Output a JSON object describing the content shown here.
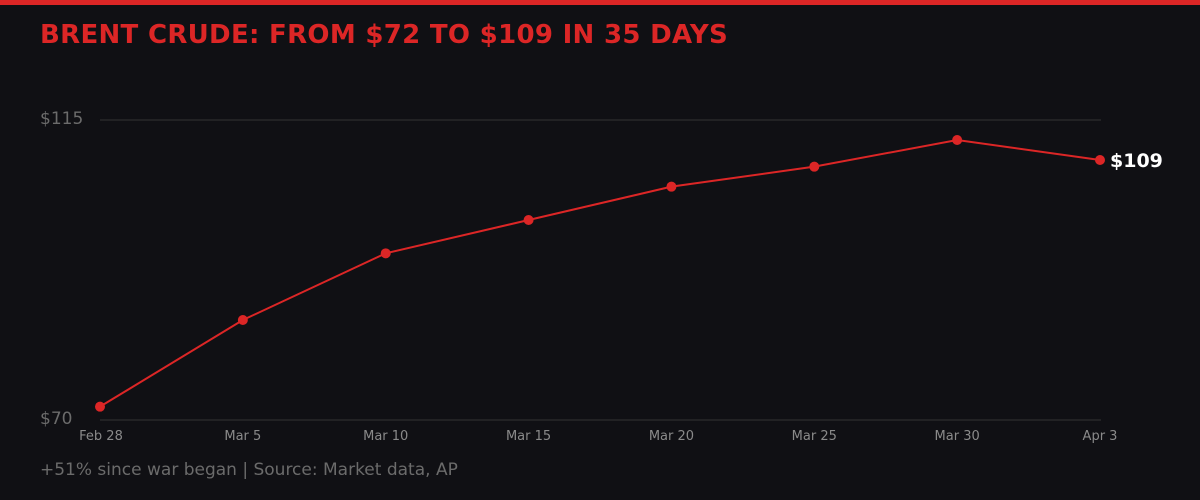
{
  "title": "BRENT CRUDE: FROM $72 TO $109 IN 35 DAYS",
  "footer": "+51% since war began | Source: Market data, AP",
  "end_label": "$109",
  "colors": {
    "accent": "#dc2626",
    "background": "#101014",
    "gridline": "#333333",
    "axis_text": "#6b6b6b",
    "end_label": "#ffffff"
  },
  "y_axis": {
    "ticks": [
      {
        "label": "$115",
        "value": 115
      },
      {
        "label": "$70",
        "value": 70
      }
    ]
  },
  "x_axis": {
    "ticks": [
      "Feb 28",
      "Mar 5",
      "Mar 10",
      "Mar 15",
      "Mar 20",
      "Mar 25",
      "Mar 30",
      "Apr 3"
    ]
  },
  "chart_data": {
    "type": "line",
    "title": "BRENT CRUDE: FROM $72 TO $109 IN 35 DAYS",
    "subtitle": "",
    "xlabel": "",
    "ylabel": "",
    "categories": [
      "Feb 28",
      "Mar 5",
      "Mar 10",
      "Mar 15",
      "Mar 20",
      "Mar 25",
      "Mar 30",
      "Apr 3"
    ],
    "series": [
      {
        "name": "Brent Crude",
        "values": [
          72,
          85,
          95,
          100,
          105,
          108,
          112,
          109
        ],
        "color": "#dc2626"
      }
    ],
    "ylim": [
      70,
      115
    ],
    "yticks": [
      "$70",
      "$115"
    ],
    "grid": true,
    "legend": "none",
    "annotations": [
      {
        "text": "$109",
        "at": "Apr 3"
      },
      {
        "text": "+51% since war began | Source: Market data, AP",
        "position": "footer"
      }
    ]
  }
}
